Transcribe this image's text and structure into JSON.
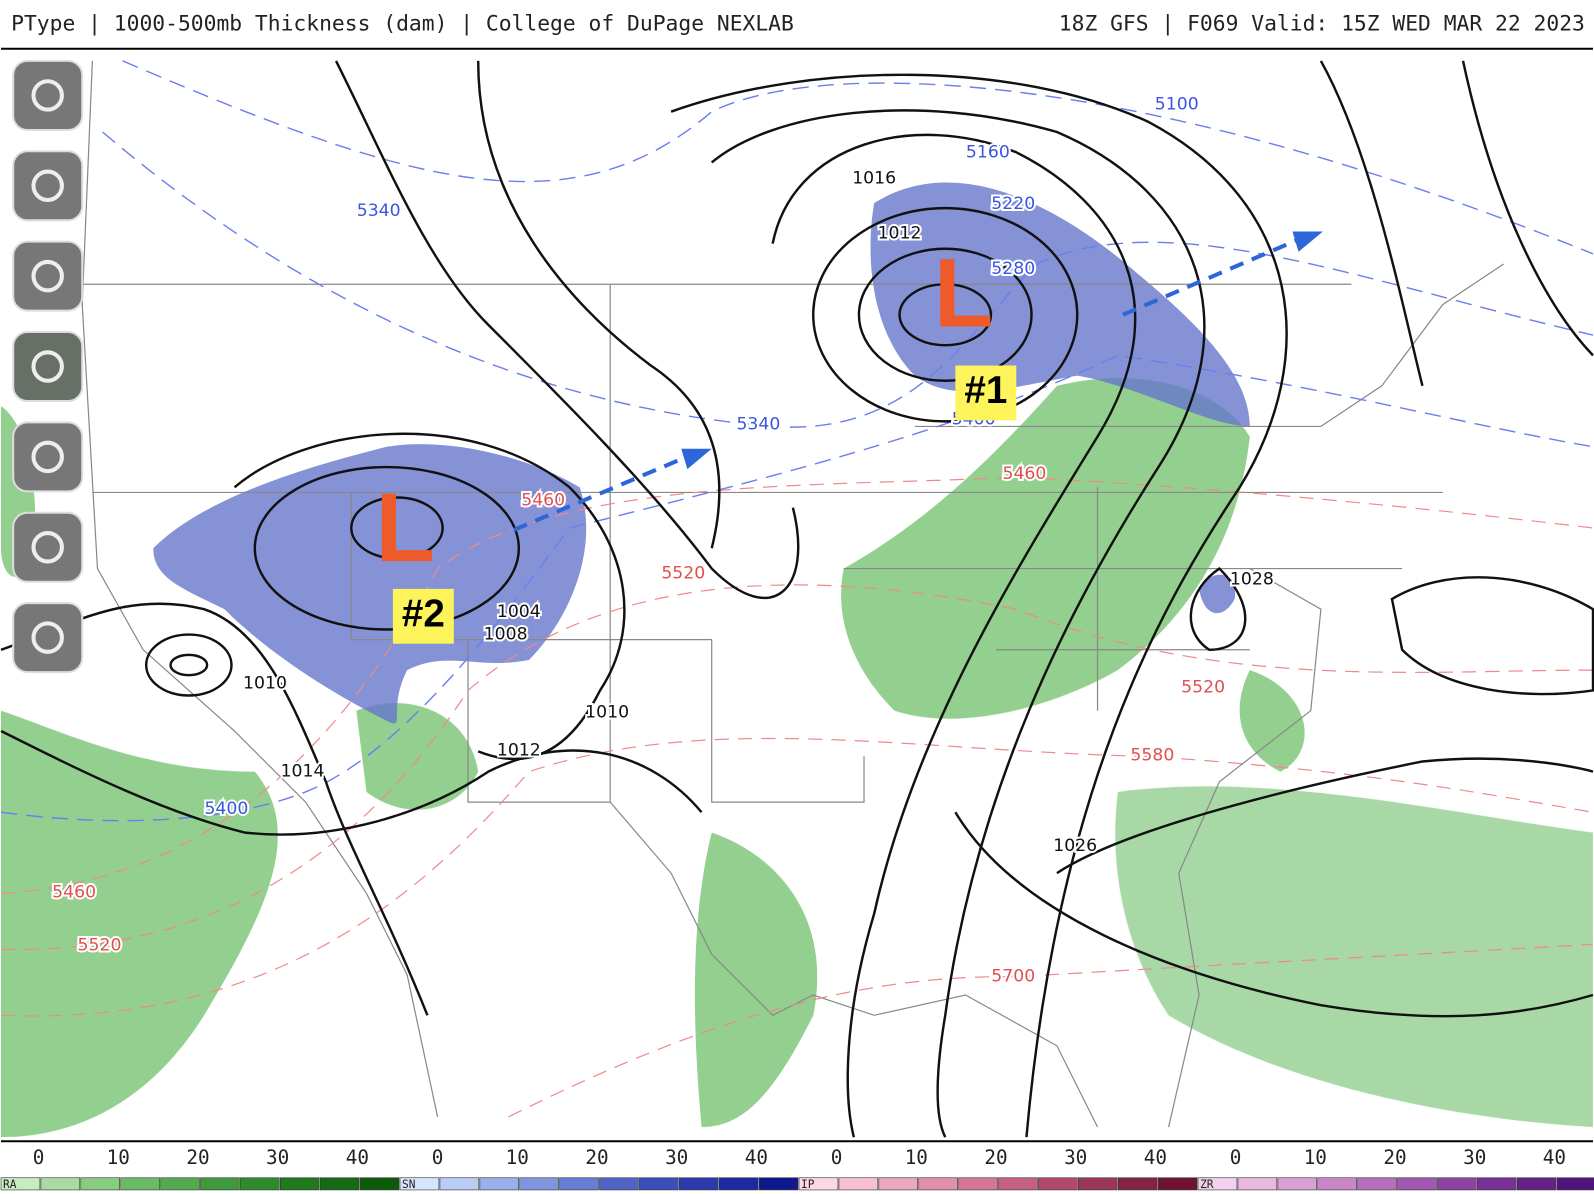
{
  "header": {
    "title": "PType | 1000-500mb Thickness (dam) | College of DuPage NEXLAB",
    "run": "18Z GFS | F069 Valid: 15Z WED MAR 22 2023"
  },
  "map": {
    "pressure_labels": [
      1016,
      1012,
      1004,
      1008,
      1010,
      1010,
      1012,
      1014,
      1028,
      1026
    ],
    "thickness_labels_blue": [
      5100,
      5160,
      5220,
      5280,
      5340,
      5340,
      5400,
      5400
    ],
    "thickness_labels_red": [
      5460,
      5460,
      5520,
      5520,
      5580,
      5700,
      5460,
      5520
    ]
  },
  "annotations": [
    {
      "letter": "L",
      "tag": "#1"
    },
    {
      "letter": "L",
      "tag": "#2"
    }
  ],
  "legend": {
    "groups": [
      {
        "label": "RA",
        "ticks": [
          0,
          10,
          20,
          30,
          40
        ]
      },
      {
        "label": "SN",
        "ticks": [
          0,
          10,
          20,
          30,
          40
        ]
      },
      {
        "label": "IP",
        "ticks": [
          0,
          10,
          20,
          30,
          40
        ]
      },
      {
        "label": "ZR",
        "ticks": [
          0,
          10,
          20,
          30,
          40
        ]
      }
    ]
  }
}
